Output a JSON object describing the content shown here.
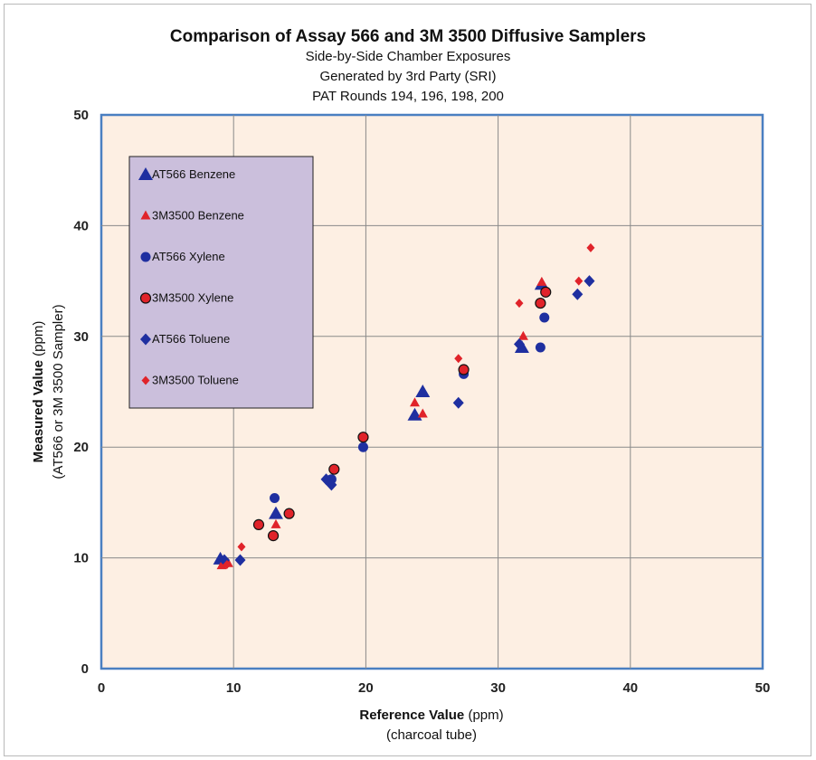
{
  "chart_data": {
    "type": "scatter",
    "title": "Comparison of Assay 566 and 3M 3500 Diffusive Samplers",
    "subtitles": [
      "Side-by-Side Chamber Exposures",
      "Generated by 3rd Party (SRI)",
      "PAT Rounds 194, 196, 198, 200"
    ],
    "xlabel": "Reference Value",
    "xlabel_unit": " (ppm)",
    "xlabel_sub": "(charcoal tube)",
    "ylabel": "Measured  Value",
    "ylabel_unit": " (ppm)",
    "ylabel_sub": "(AT566 or 3M 3500 Sampler)",
    "xlim": [
      0,
      50
    ],
    "ylim": [
      0,
      50
    ],
    "xticks": [
      "0",
      "10",
      "20",
      "30",
      "40",
      "50"
    ],
    "yticks": [
      "0",
      "10",
      "20",
      "30",
      "40",
      "50"
    ],
    "grid": true,
    "legend_position": "top-left",
    "series": [
      {
        "name": "AT566 Benzene",
        "marker": "triangle",
        "color": "#1f2fa0",
        "points": [
          [
            9.0,
            9.9
          ],
          [
            13.2,
            14.0
          ],
          [
            24.3,
            25.0
          ],
          [
            23.7,
            22.9
          ],
          [
            31.8,
            29.0
          ],
          [
            33.3,
            34.7
          ]
        ]
      },
      {
        "name": "3M3500 Benzene",
        "marker": "triangle-small",
        "color": "#e0232a",
        "points": [
          [
            9.1,
            9.3
          ],
          [
            9.6,
            9.5
          ],
          [
            13.2,
            13.0
          ],
          [
            23.7,
            24.0
          ],
          [
            24.3,
            23.0
          ],
          [
            31.9,
            30.0
          ],
          [
            33.3,
            34.9
          ]
        ]
      },
      {
        "name": "AT566 Xylene",
        "marker": "circle",
        "color": "#1f2fa0",
        "points": [
          [
            13.1,
            15.4
          ],
          [
            17.4,
            17.1
          ],
          [
            19.8,
            20.0
          ],
          [
            27.4,
            26.6
          ],
          [
            33.2,
            29.0
          ],
          [
            33.5,
            31.7
          ]
        ]
      },
      {
        "name": "3M3500 Xylene",
        "marker": "circle-red",
        "color": "#e0232a",
        "points": [
          [
            11.9,
            13.0
          ],
          [
            13.0,
            12.0
          ],
          [
            14.2,
            14.0
          ],
          [
            17.6,
            18.0
          ],
          [
            19.8,
            20.9
          ],
          [
            27.4,
            27.0
          ],
          [
            33.2,
            33.0
          ],
          [
            33.6,
            34.0
          ]
        ]
      },
      {
        "name": "AT566 Toluene",
        "marker": "diamond",
        "color": "#1f2fa0",
        "points": [
          [
            9.3,
            9.8
          ],
          [
            10.5,
            9.8
          ],
          [
            17.0,
            17.1
          ],
          [
            17.4,
            16.6
          ],
          [
            27.0,
            24.0
          ],
          [
            31.6,
            29.3
          ],
          [
            36.0,
            33.8
          ],
          [
            36.9,
            35.0
          ]
        ]
      },
      {
        "name": "3M3500 Toluene",
        "marker": "diamond-small",
        "color": "#e0232a",
        "points": [
          [
            9.5,
            9.4
          ],
          [
            10.6,
            11.0
          ],
          [
            27.0,
            28.0
          ],
          [
            31.6,
            33.0
          ],
          [
            36.1,
            35.0
          ],
          [
            37.0,
            38.0
          ]
        ]
      }
    ]
  }
}
